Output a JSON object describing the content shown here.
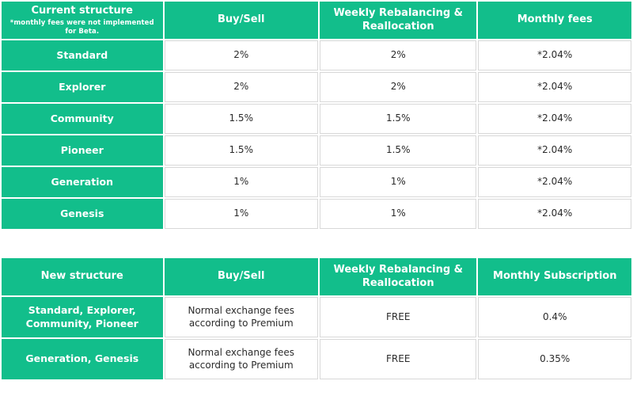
{
  "colors": {
    "green": "#12be8b",
    "ink": "#2b2b2b",
    "border": "#d8d8d8",
    "background": "#ffffff",
    "header_text": "#ffffff"
  },
  "chart_data": [
    {
      "type": "table",
      "title": "Current structure",
      "note": "*monthly fees were not implemented for Beta.",
      "columns": [
        "Buy/Sell",
        "Weekly Rebalancing & Reallocation",
        "Monthly fees"
      ],
      "row_labels": [
        "Standard",
        "Explorer",
        "Community",
        "Pioneer",
        "Generation",
        "Genesis"
      ],
      "rows": [
        [
          "2%",
          "2%",
          "*2.04%"
        ],
        [
          "2%",
          "2%",
          "*2.04%"
        ],
        [
          "1.5%",
          "1.5%",
          "*2.04%"
        ],
        [
          "1.5%",
          "1.5%",
          "*2.04%"
        ],
        [
          "1%",
          "1%",
          "*2.04%"
        ],
        [
          "1%",
          "1%",
          "*2.04%"
        ]
      ]
    },
    {
      "type": "table",
      "title": "New structure",
      "note": "",
      "columns": [
        "Buy/Sell",
        "Weekly Rebalancing & Reallocation",
        "Monthly Subscription"
      ],
      "row_labels": [
        "Standard, Explorer, Community, Pioneer",
        "Generation, Genesis"
      ],
      "rows": [
        [
          "Normal exchange fees according to Premium",
          "FREE",
          "0.4%"
        ],
        [
          "Normal exchange fees according to Premium",
          "FREE",
          "0.35%"
        ]
      ]
    }
  ]
}
